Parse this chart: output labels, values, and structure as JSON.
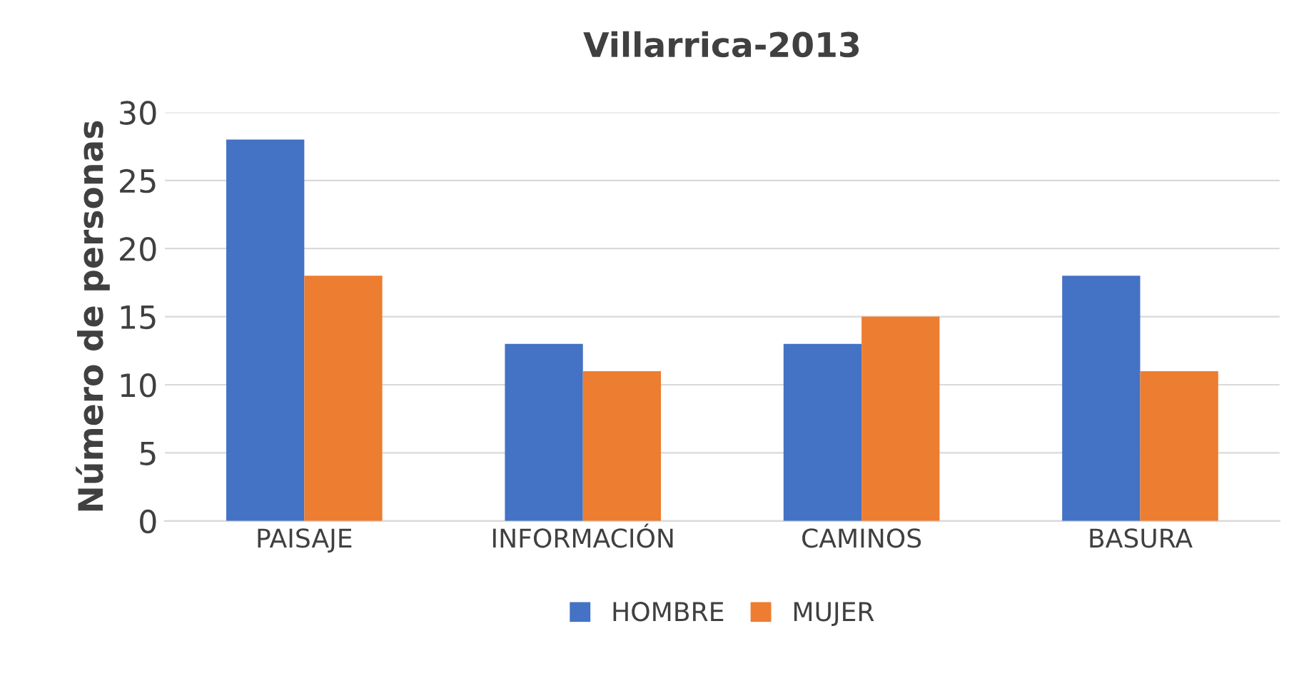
{
  "chart_data": {
    "type": "bar",
    "title": "Villarrica-2013",
    "ylabel": "Número de personas",
    "categories": [
      "PAISAJE",
      "INFORMACIÓN",
      "CAMINOS",
      "BASURA"
    ],
    "series": [
      {
        "name": "HOMBRE",
        "color": "#4472c4",
        "values": [
          28,
          13,
          13,
          18
        ]
      },
      {
        "name": "MUJER",
        "color": "#ed7d31",
        "values": [
          18,
          11,
          15,
          11
        ]
      }
    ],
    "ylim": [
      0,
      30
    ],
    "yticks": [
      0,
      5,
      10,
      15,
      20,
      25,
      30
    ],
    "grid": "y",
    "legend": "bottom"
  }
}
